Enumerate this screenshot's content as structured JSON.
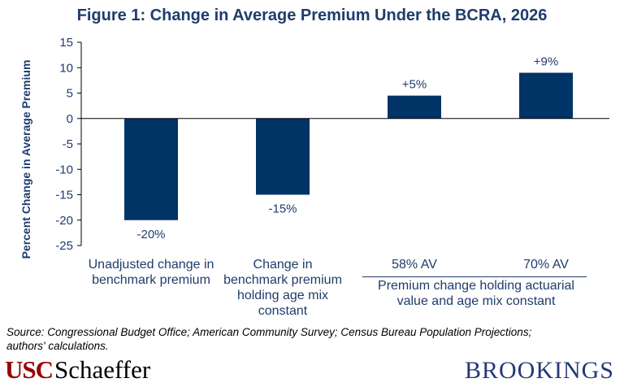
{
  "title": "Figure 1:  Change in Average Premium Under the BCRA, 2026",
  "chart_data": {
    "type": "bar",
    "title": "Figure 1:  Change in Average Premium Under the BCRA, 2026",
    "ylabel": "Percent Change in Average Premium",
    "xlabel": "",
    "ylim": [
      -25,
      15
    ],
    "yticks": [
      15,
      10,
      5,
      0,
      -5,
      -10,
      -15,
      -20,
      -25
    ],
    "categories": [
      "Unadjusted change in benchmark premium",
      "Change in benchmark premium holding age mix constant",
      "58% AV",
      "70% AV"
    ],
    "values": [
      -20,
      -15,
      4.5,
      9
    ],
    "data_labels": [
      "-20%",
      "-15%",
      "+5%",
      "+9%"
    ],
    "group_label": "Premium change holding actuarial value and age mix constant",
    "bar_color": "#003366",
    "grid": false
  },
  "categories_display": [
    [
      "Unadjusted change in",
      "benchmark premium"
    ],
    [
      "Change in",
      "benchmark premium",
      "holding age mix",
      "constant"
    ],
    [
      "58% AV"
    ],
    [
      "70% AV"
    ]
  ],
  "group_label_lines": [
    "Premium change holding actuarial",
    "value and age mix constant"
  ],
  "source_lines": [
    "Source:  Congressional Budget Office; American Community Survey; Census Bureau Population Projections;",
    "authors' calculations."
  ],
  "logos": {
    "usc_part": "USC",
    "schaeffer_part": "Schaeffer",
    "brookings": "BROOKINGS"
  },
  "colors": {
    "title": "#1f3c6d",
    "bar": "#003366",
    "usc_red": "#990000",
    "brookings_blue": "#23397a"
  }
}
